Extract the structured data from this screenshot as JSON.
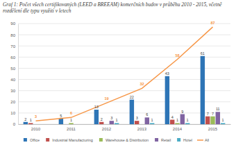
{
  "chart_data": {
    "type": "bar",
    "title": "Graf 1: Počet všech certifikovaných (LEED a BREEAM) komerčních budov v průběhu 2010 - 2015, včetně rozdělení dle typu využití v letech",
    "categories": [
      "2010",
      "2011",
      "2012",
      "2013",
      "2014",
      "2015"
    ],
    "series": [
      {
        "name": "Office",
        "type": "bar",
        "color": "#2E75B6",
        "values": [
          2,
          5,
          13,
          22,
          43,
          61
        ]
      },
      {
        "name": "Industrial Manufacturing",
        "type": "bar",
        "color": "#C0504D",
        "values": [
          1,
          null,
          2,
          3,
          4,
          7
        ]
      },
      {
        "name": "Warehouse & Distribution",
        "type": "bar",
        "color": "#9BBB59",
        "values": [
          null,
          1,
          null,
          null,
          1,
          7
        ]
      },
      {
        "name": "Retail",
        "type": "bar",
        "color": "#8064A2",
        "values": [
          null,
          null,
          3,
          6,
          9,
          11
        ]
      },
      {
        "name": "Hotel",
        "type": "bar",
        "color": "#4BACC6",
        "values": [
          null,
          null,
          1,
          1,
          1,
          1
        ]
      },
      {
        "name": "All",
        "type": "line",
        "color": "#F79646",
        "values": [
          3,
          6,
          19,
          32,
          58,
          87
        ]
      }
    ],
    "ylim": [
      0,
      90
    ],
    "yticks": [
      0,
      10,
      20,
      30,
      40,
      50,
      60,
      70,
      80,
      90
    ],
    "grid": true,
    "data_labels": true,
    "legend": "bottom"
  }
}
